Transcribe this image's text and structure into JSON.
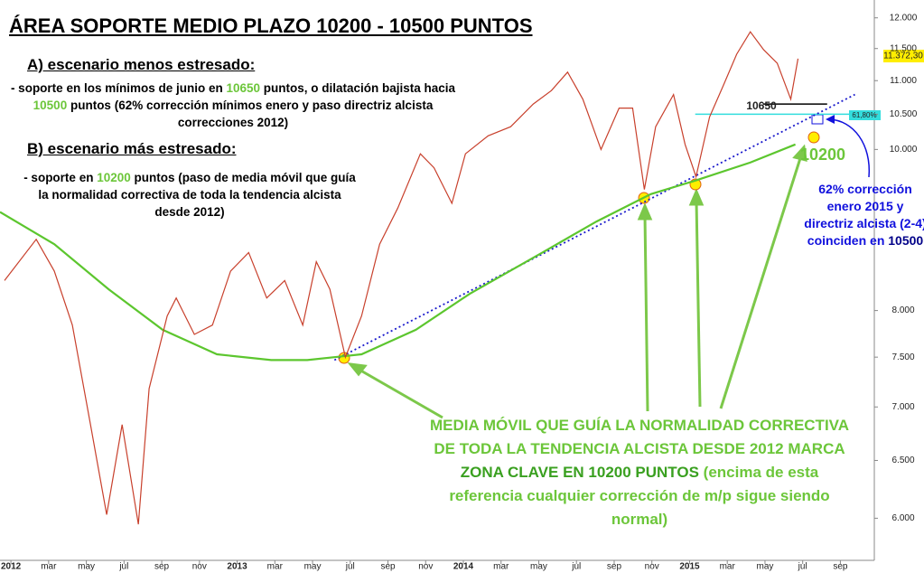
{
  "chart_data": {
    "type": "line",
    "title": "ÁREA SOPORTE MEDIO PLAZO 10200 - 10500 PUNTOS",
    "log_scale": true,
    "xlim": [
      -0.58,
      45.8
    ],
    "ylim": [
      5660,
      12300
    ],
    "xticks": [
      {
        "value": 0,
        "label": "2012"
      },
      {
        "value": 2,
        "label": "mar"
      },
      {
        "value": 4,
        "label": "may"
      },
      {
        "value": 6,
        "label": "jul"
      },
      {
        "value": 8,
        "label": "sep"
      },
      {
        "value": 10,
        "label": "nov"
      },
      {
        "value": 12,
        "label": "2013"
      },
      {
        "value": 14,
        "label": "mar"
      },
      {
        "value": 16,
        "label": "may"
      },
      {
        "value": 18,
        "label": "jul"
      },
      {
        "value": 20,
        "label": "sep"
      },
      {
        "value": 22,
        "label": "nov"
      },
      {
        "value": 24,
        "label": "2014"
      },
      {
        "value": 26,
        "label": "mar"
      },
      {
        "value": 28,
        "label": "may"
      },
      {
        "value": 30,
        "label": "jul"
      },
      {
        "value": 32,
        "label": "sep"
      },
      {
        "value": 34,
        "label": "nov"
      },
      {
        "value": 36,
        "label": "2015"
      },
      {
        "value": 38,
        "label": "mar"
      },
      {
        "value": 40,
        "label": "may"
      },
      {
        "value": 42,
        "label": "jul"
      },
      {
        "value": 44,
        "label": "sep"
      }
    ],
    "yticks": [
      {
        "value": 12000,
        "label": "12.000"
      },
      {
        "value": 11500,
        "label": "11.500"
      },
      {
        "value": 11000,
        "label": "11.000"
      },
      {
        "value": 10500,
        "label": "10.500"
      },
      {
        "value": 10000,
        "label": "10.000"
      },
      {
        "value": 8000,
        "label": "8.000"
      },
      {
        "value": 7500,
        "label": "7.500"
      },
      {
        "value": 7000,
        "label": "7.000"
      },
      {
        "value": 6500,
        "label": "6.500"
      },
      {
        "value": 6000,
        "label": "6.000"
      }
    ],
    "series": [
      {
        "color": "#c8402c",
        "x": [
          -0.34,
          1.34,
          2.3,
          3.26,
          4.22,
          5.08,
          5.9,
          6.76,
          7.33,
          8.29,
          8.77,
          9.73,
          10.69,
          11.65,
          12.61,
          13.57,
          14.52,
          15.48,
          16.2,
          16.92,
          17.74,
          18.6,
          19.56,
          20.52,
          21.72,
          22.44,
          23.39,
          24.11,
          25.31,
          26.51,
          27.71,
          28.67,
          29.53,
          30.34,
          31.3,
          32.26,
          32.98,
          33.6,
          34.2,
          35.15,
          35.76,
          36.34,
          37.06,
          37.78,
          38.5,
          39.22,
          39.93,
          40.65,
          41.37,
          41.75
        ],
        "values": [
          8340,
          8830,
          8450,
          7840,
          6830,
          6030,
          6830,
          5950,
          7180,
          7940,
          8140,
          7740,
          7840,
          8450,
          8670,
          8140,
          8340,
          7840,
          8560,
          8240,
          7500,
          7940,
          8770,
          9220,
          9940,
          9750,
          9280,
          9940,
          10190,
          10320,
          10650,
          10850,
          11130,
          10720,
          10000,
          10590,
          10590,
          9460,
          10320,
          10790,
          10070,
          9630,
          10460,
          10920,
          11410,
          11770,
          11480,
          11270,
          10720,
          11340
        ]
      },
      {
        "color": "#5cc62e",
        "x": [
          -0.58,
          2.3,
          5.18,
          8.05,
          10.93,
          13.81,
          15.72,
          18.6,
          21.48,
          24.35,
          28.19,
          31.06,
          33.94,
          36.34,
          39.21,
          41.61
        ],
        "values": [
          9170,
          8770,
          8240,
          7790,
          7530,
          7470,
          7470,
          7530,
          7790,
          8190,
          8670,
          9050,
          9400,
          9580,
          9820,
          10070
        ]
      },
      {
        "color": "#1a1acc",
        "style": "dotted",
        "x": [
          17.16,
          44.77
        ],
        "values": [
          7470,
          10790
        ]
      },
      {
        "color": "#33dddd",
        "style": "solid",
        "x": [
          36.3,
          44.65
        ],
        "values": [
          10500,
          10500
        ]
      },
      {
        "color": "#000000",
        "style": "solid",
        "x": [
          39.9,
          43.3
        ],
        "values": [
          10650,
          10650
        ]
      }
    ],
    "annotations": {
      "last_price": "11.372,30",
      "fib": "61,80%",
      "level_10650": "10650",
      "level_10200": "10200",
      "heading_a": "A) escenario menos estresado:",
      "text_a": [
        "- soporte en los mínimos de junio en ",
        "10650",
        " puntos, o dilatación bajista hacia ",
        "10500",
        " puntos (62% corrección mínimos enero y paso directriz alcista correcciones 2012)"
      ],
      "heading_b": "B) escenario más estresado:",
      "text_b": [
        "- soporte en ",
        "10200",
        " puntos (paso de media móvil que guía la normalidad correctiva de toda la tendencia alcista desde 2012)"
      ],
      "note_right": [
        "62% corrección enero 2015 y directriz alcista (2-4) coinciden en ",
        "10500"
      ],
      "note_main": [
        "MEDIA MÓVIL QUE GUÍA LA NORMALIDAD CORRECTIVA DE TODA LA TENDENCIA ALCISTA DESDE 2012 MARCA ",
        "ZONA CLAVE EN 10200 PUNTOS",
        " (encima de esta referencia cualquier corrección de m/p sigue siendo normal)"
      ]
    }
  }
}
